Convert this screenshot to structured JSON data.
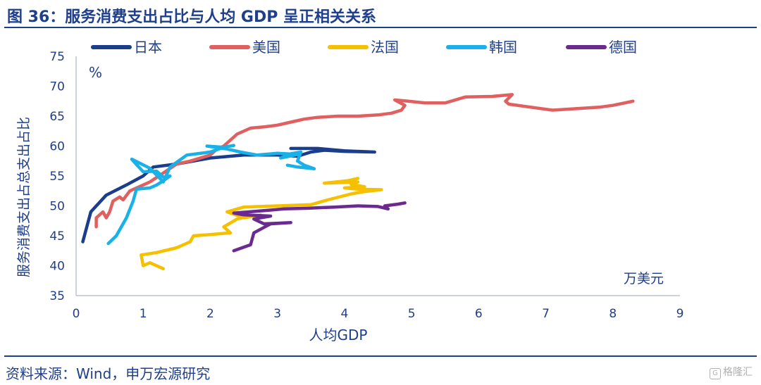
{
  "header": {
    "title": "图 36：服务消费支出占比与人均 GDP 呈正相关关系"
  },
  "footer": {
    "source": "资料来源：Wind，申万宏源研究",
    "watermark": "格隆汇"
  },
  "chart_data": {
    "type": "line",
    "xlabel": "人均GDP",
    "ylabel": "服务消费支出占总支出占比",
    "x_unit": "万美元",
    "y_unit": "%",
    "xlim": [
      0,
      9
    ],
    "ylim": [
      35,
      75
    ],
    "xticks": [
      "0",
      "1",
      "2",
      "3",
      "4",
      "5",
      "6",
      "7",
      "8",
      "9"
    ],
    "yticks": [
      "35",
      "40",
      "45",
      "50",
      "55",
      "60",
      "65",
      "70",
      "75"
    ],
    "grid": false,
    "legend_position": "top",
    "series": [
      {
        "name": "日本",
        "color": "#1a3e8c",
        "points": [
          [
            0.1,
            44
          ],
          [
            0.22,
            49
          ],
          [
            0.45,
            51.8
          ],
          [
            0.75,
            53.5
          ],
          [
            1.0,
            55
          ],
          [
            1.15,
            56.5
          ],
          [
            1.5,
            57
          ],
          [
            2.0,
            58
          ],
          [
            2.5,
            58.5
          ],
          [
            3.0,
            58.5
          ],
          [
            3.3,
            58.3
          ],
          [
            3.5,
            59
          ],
          [
            3.7,
            59.3
          ],
          [
            4.0,
            59.1
          ],
          [
            4.45,
            59.0
          ],
          [
            4.0,
            59.2
          ],
          [
            3.6,
            59.6
          ],
          [
            3.2,
            59.6
          ]
        ]
      },
      {
        "name": "美国",
        "color": "#e06060",
        "points": [
          [
            0.3,
            46.5
          ],
          [
            0.3,
            48
          ],
          [
            0.4,
            49
          ],
          [
            0.45,
            48
          ],
          [
            0.5,
            49
          ],
          [
            0.55,
            50.8
          ],
          [
            0.65,
            51.5
          ],
          [
            0.7,
            51
          ],
          [
            0.8,
            52.5
          ],
          [
            0.9,
            53
          ],
          [
            1.0,
            53.5
          ],
          [
            1.1,
            54
          ],
          [
            1.3,
            55.5
          ],
          [
            1.5,
            57
          ],
          [
            1.7,
            57.5
          ],
          [
            2.0,
            58.5
          ],
          [
            2.1,
            59.5
          ],
          [
            2.2,
            60
          ],
          [
            2.3,
            61
          ],
          [
            2.4,
            62
          ],
          [
            2.6,
            63
          ],
          [
            2.8,
            63.2
          ],
          [
            3.0,
            63.5
          ],
          [
            3.2,
            64
          ],
          [
            3.4,
            64.5
          ],
          [
            3.6,
            64.8
          ],
          [
            3.9,
            65
          ],
          [
            4.2,
            65
          ],
          [
            4.5,
            65.2
          ],
          [
            4.7,
            65.5
          ],
          [
            4.85,
            66
          ],
          [
            4.9,
            66.8
          ],
          [
            4.75,
            67.7
          ],
          [
            4.95,
            67.5
          ],
          [
            5.2,
            67.2
          ],
          [
            5.5,
            67.2
          ],
          [
            5.8,
            68.2
          ],
          [
            6.2,
            68.3
          ],
          [
            6.5,
            68.6
          ],
          [
            6.4,
            67.5
          ],
          [
            6.45,
            67.0
          ],
          [
            7.1,
            66
          ],
          [
            7.8,
            66.5
          ],
          [
            8.0,
            66.8
          ],
          [
            8.3,
            67.5
          ]
        ]
      },
      {
        "name": "法国",
        "color": "#f5c000",
        "points": [
          [
            1.3,
            39.5
          ],
          [
            1.1,
            40.5
          ],
          [
            1.0,
            40
          ],
          [
            0.97,
            41.8
          ],
          [
            1.2,
            42.2
          ],
          [
            1.5,
            43
          ],
          [
            1.7,
            44
          ],
          [
            1.75,
            45
          ],
          [
            2.0,
            45.2
          ],
          [
            2.3,
            45.5
          ],
          [
            2.2,
            46.5
          ],
          [
            2.4,
            47.8
          ],
          [
            2.55,
            48.2
          ],
          [
            2.75,
            48.5
          ],
          [
            2.5,
            48
          ],
          [
            2.25,
            49
          ],
          [
            2.5,
            49.8
          ],
          [
            3.0,
            50
          ],
          [
            3.5,
            50.2
          ],
          [
            3.75,
            51
          ],
          [
            4.1,
            52
          ],
          [
            4.3,
            52.4
          ],
          [
            4.55,
            52.7
          ],
          [
            4.2,
            52.8
          ],
          [
            4.0,
            53
          ],
          [
            4.3,
            53.2
          ],
          [
            4.1,
            53.6
          ],
          [
            4.2,
            54.0
          ],
          [
            3.7,
            53.8
          ],
          [
            4.05,
            54.2
          ],
          [
            4.2,
            54.6
          ]
        ]
      },
      {
        "name": "韩国",
        "color": "#1ab0e8",
        "points": [
          [
            0.48,
            43.7
          ],
          [
            0.6,
            45
          ],
          [
            0.75,
            48
          ],
          [
            0.85,
            50.8
          ],
          [
            0.9,
            52.8
          ],
          [
            1.1,
            53
          ],
          [
            1.2,
            53.5
          ],
          [
            1.3,
            54.2
          ],
          [
            1.4,
            55
          ],
          [
            1.3,
            54.8
          ],
          [
            1.2,
            55.8
          ],
          [
            1.0,
            55.7
          ],
          [
            0.9,
            56.9
          ],
          [
            0.83,
            57.8
          ],
          [
            1.1,
            56.3
          ],
          [
            1.3,
            54.0
          ],
          [
            1.4,
            56.5
          ],
          [
            1.65,
            58.5
          ],
          [
            2.0,
            59
          ],
          [
            2.2,
            59.8
          ],
          [
            2.35,
            60.1
          ],
          [
            2.2,
            59.8
          ],
          [
            1.95,
            60
          ],
          [
            2.25,
            59.5
          ],
          [
            2.45,
            59
          ],
          [
            2.7,
            58.5
          ],
          [
            3.0,
            58.8
          ],
          [
            3.3,
            58.6
          ],
          [
            3.05,
            58.0
          ],
          [
            3.2,
            58.7
          ],
          [
            3.35,
            59.0
          ],
          [
            3.3,
            57.5
          ],
          [
            3.4,
            56.8
          ],
          [
            3.55,
            56.2
          ],
          [
            3.3,
            56.5
          ],
          [
            3.15,
            56.8
          ]
        ]
      },
      {
        "name": "德国",
        "color": "#6b2a8f",
        "points": [
          [
            2.35,
            42.5
          ],
          [
            2.6,
            43.5
          ],
          [
            2.65,
            45.5
          ],
          [
            2.9,
            47
          ],
          [
            3.2,
            47.2
          ],
          [
            2.8,
            47.0
          ],
          [
            2.65,
            47.8
          ],
          [
            2.9,
            48.3
          ],
          [
            2.5,
            48.5
          ],
          [
            2.35,
            48.8
          ],
          [
            2.8,
            49.2
          ],
          [
            3.1,
            49.5
          ],
          [
            3.45,
            49.6
          ],
          [
            3.65,
            49.7
          ],
          [
            3.85,
            49.8
          ],
          [
            4.2,
            50
          ],
          [
            4.5,
            49.9
          ],
          [
            4.65,
            49.5
          ],
          [
            4.6,
            50
          ],
          [
            4.8,
            50.3
          ],
          [
            4.9,
            50.5
          ]
        ]
      }
    ]
  }
}
